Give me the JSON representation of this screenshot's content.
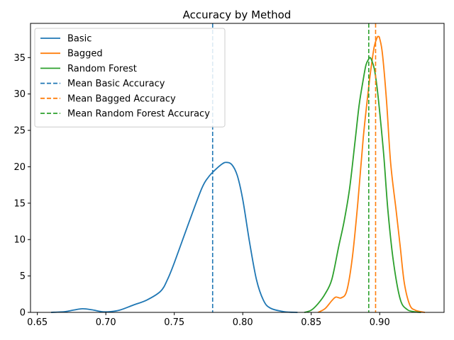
{
  "chart_data": {
    "type": "line",
    "title": "Accuracy by Method",
    "xlabel": "",
    "ylabel": "",
    "xlim": [
      0.645,
      0.947
    ],
    "ylim": [
      0,
      39.7
    ],
    "xticks": [
      0.65,
      0.7,
      0.75,
      0.8,
      0.85,
      0.9
    ],
    "xtick_labels": [
      "0.65",
      "0.70",
      "0.75",
      "0.80",
      "0.85",
      "0.90"
    ],
    "yticks": [
      0,
      5,
      10,
      15,
      20,
      25,
      30,
      35
    ],
    "ytick_labels": [
      "0",
      "5",
      "10",
      "15",
      "20",
      "25",
      "30",
      "35"
    ],
    "grid": false,
    "legend_position": "top-left",
    "series": [
      {
        "name": "Basic",
        "color": "#1f77b4",
        "x": [
          0.66,
          0.67,
          0.676,
          0.683,
          0.69,
          0.697,
          0.703,
          0.71,
          0.72,
          0.73,
          0.74,
          0.745,
          0.75,
          0.76,
          0.77,
          0.775,
          0.78,
          0.785,
          0.788,
          0.792,
          0.796,
          0.8,
          0.805,
          0.81,
          0.815,
          0.82,
          0.83,
          0.84
        ],
        "y": [
          0.0,
          0.1,
          0.3,
          0.5,
          0.35,
          0.1,
          0.1,
          0.3,
          1.0,
          1.7,
          2.9,
          4.5,
          6.8,
          12.0,
          17.0,
          18.6,
          19.6,
          20.4,
          20.6,
          20.3,
          18.8,
          15.5,
          9.6,
          4.5,
          1.7,
          0.6,
          0.1,
          0.0
        ]
      },
      {
        "name": "Bagged",
        "color": "#ff7f0e",
        "x": [
          0.855,
          0.86,
          0.865,
          0.868,
          0.872,
          0.876,
          0.88,
          0.884,
          0.888,
          0.892,
          0.894,
          0.896,
          0.898,
          0.899,
          0.9,
          0.902,
          0.905,
          0.908,
          0.912,
          0.915,
          0.918,
          0.922,
          0.926,
          0.93,
          0.933
        ],
        "y": [
          0.0,
          0.5,
          1.6,
          2.1,
          2.0,
          3.0,
          7.5,
          15.0,
          24.0,
          31.0,
          34.0,
          36.5,
          37.7,
          37.9,
          37.6,
          35.5,
          29.0,
          20.5,
          14.0,
          9.0,
          4.0,
          1.0,
          0.3,
          0.1,
          0.0
        ]
      },
      {
        "name": "Random Forest",
        "color": "#2ca02c",
        "x": [
          0.845,
          0.85,
          0.855,
          0.86,
          0.865,
          0.87,
          0.874,
          0.878,
          0.882,
          0.885,
          0.888,
          0.89,
          0.892,
          0.893,
          0.894,
          0.896,
          0.898,
          0.9,
          0.903,
          0.906,
          0.91,
          0.915,
          0.92,
          0.925,
          0.93
        ],
        "y": [
          0.0,
          0.3,
          1.2,
          2.5,
          4.5,
          9.0,
          12.5,
          17.0,
          23.5,
          28.5,
          32.0,
          34.0,
          34.8,
          35.0,
          34.7,
          33.5,
          31.0,
          27.5,
          21.5,
          14.0,
          7.0,
          1.8,
          0.4,
          0.1,
          0.0
        ]
      }
    ],
    "vlines": [
      {
        "name": "Mean Basic Accuracy",
        "x": 0.778,
        "color": "#1f77b4",
        "style": "dashed"
      },
      {
        "name": "Mean Bagged Accuracy",
        "x": 0.897,
        "color": "#ff7f0e",
        "style": "dashed"
      },
      {
        "name": "Mean Random Forest Accuracy",
        "x": 0.892,
        "color": "#2ca02c",
        "style": "dashed"
      }
    ],
    "legend": [
      {
        "label": "Basic",
        "color": "#1f77b4",
        "style": "solid"
      },
      {
        "label": "Bagged",
        "color": "#ff7f0e",
        "style": "solid"
      },
      {
        "label": "Random Forest",
        "color": "#2ca02c",
        "style": "solid"
      },
      {
        "label": "Mean Basic Accuracy",
        "color": "#1f77b4",
        "style": "dashed"
      },
      {
        "label": "Mean Bagged Accuracy",
        "color": "#ff7f0e",
        "style": "dashed"
      },
      {
        "label": "Mean Random Forest Accuracy",
        "color": "#2ca02c",
        "style": "dashed"
      }
    ]
  }
}
